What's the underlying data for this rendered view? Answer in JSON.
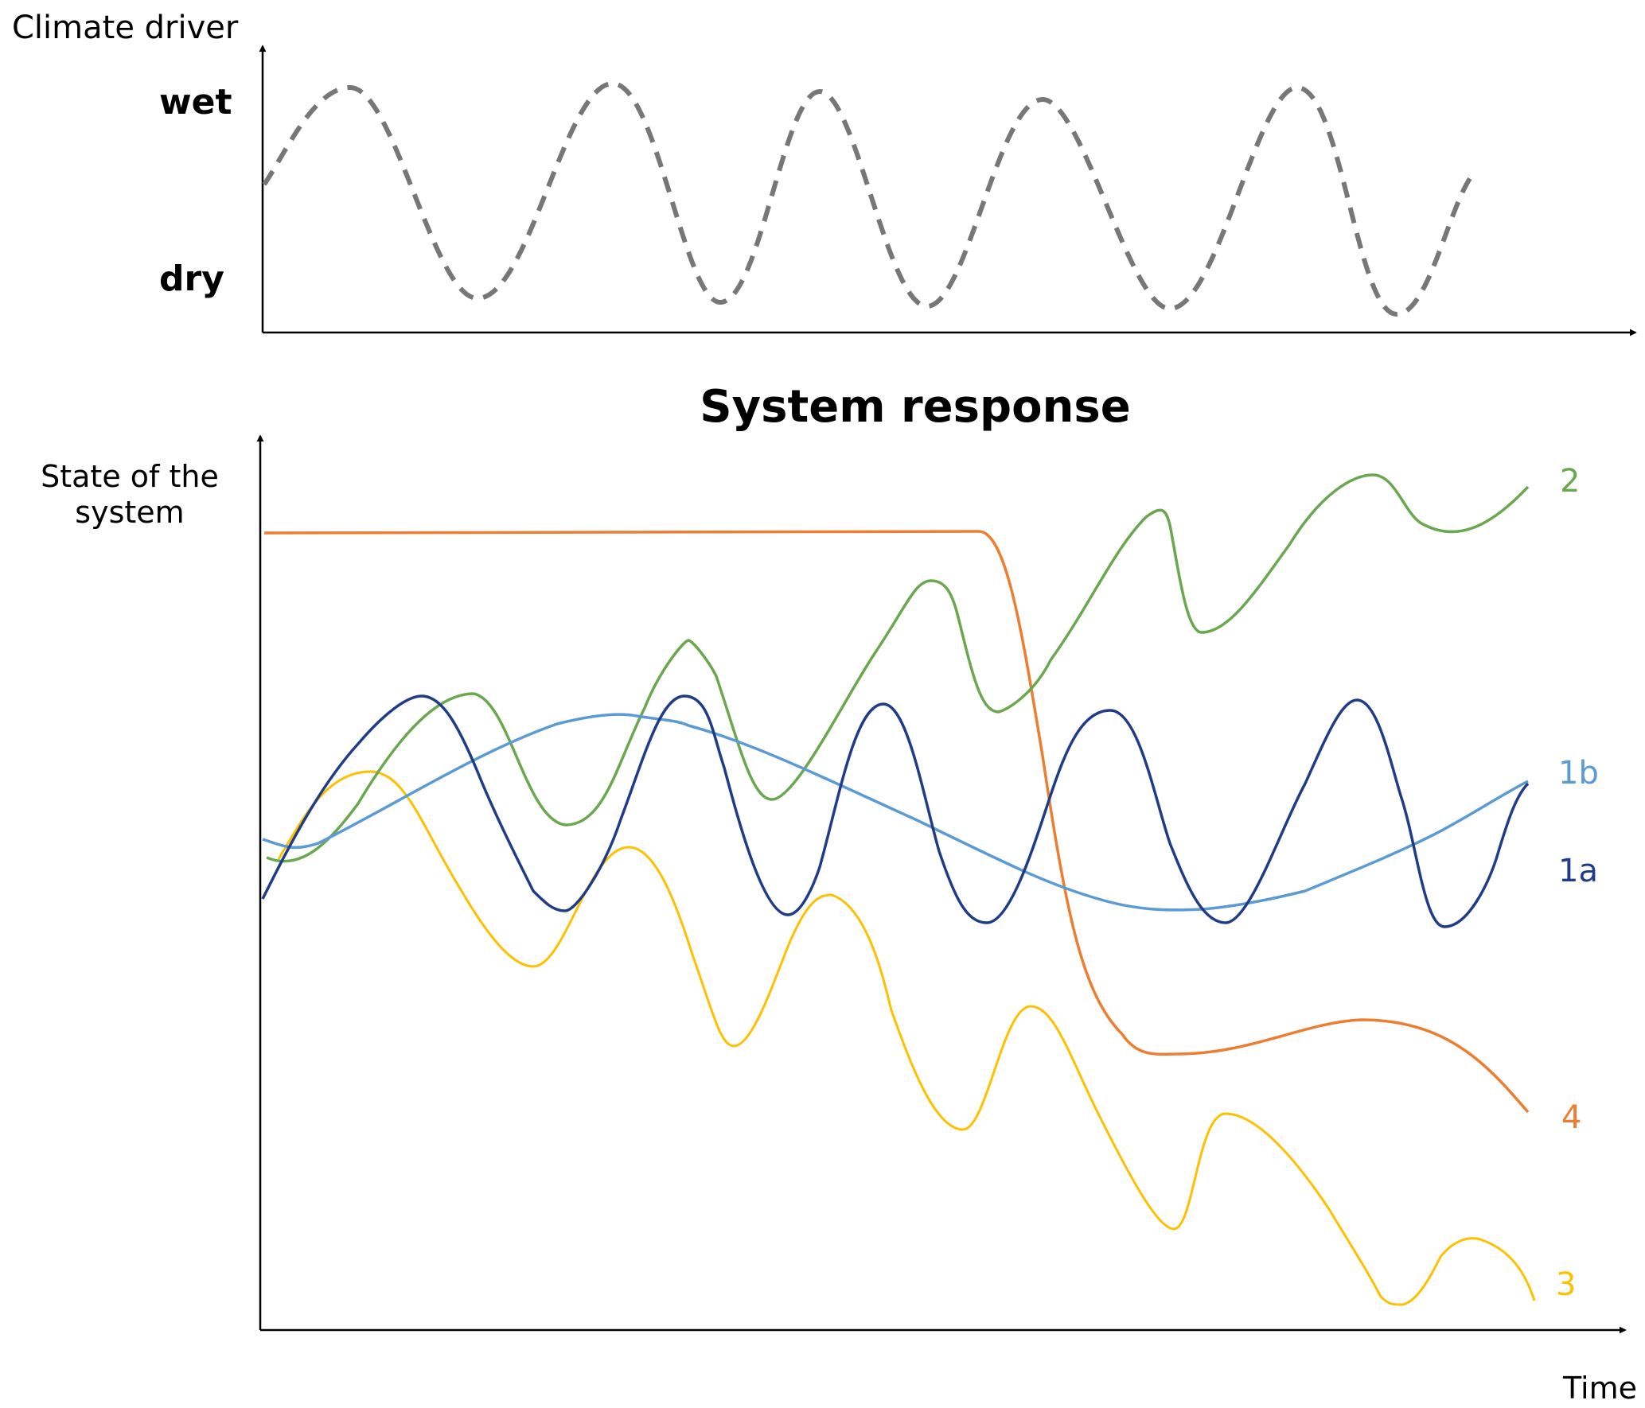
{
  "driver": {
    "title": "Climate driver",
    "wet_label": "wet",
    "dry_label": "dry",
    "line_color": "#777777"
  },
  "response": {
    "title": "System response",
    "y_label_line1": "State of the",
    "y_label_line2": "system",
    "x_label": "Time"
  },
  "series": [
    {
      "label": "2",
      "color": "#6aa84f"
    },
    {
      "label": "1b",
      "color": "#5b9bd5"
    },
    {
      "label": "1a",
      "color": "#1f3c88"
    },
    {
      "label": "4",
      "color": "#ed7d31"
    },
    {
      "label": "3",
      "color": "#ffc000"
    }
  ]
}
